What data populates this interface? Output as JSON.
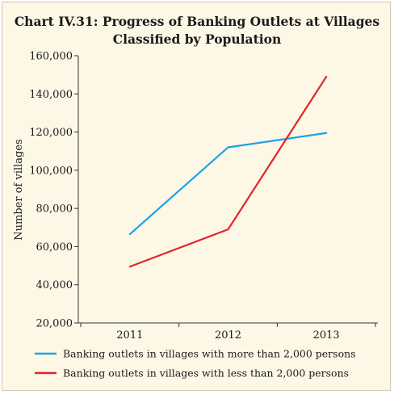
{
  "chart_data": {
    "type": "line",
    "title": "Chart IV.31: Progress of Banking Outlets at Villages Classified by Population",
    "title_line1": "Chart IV.31: Progress of Banking Outlets at Villages",
    "title_line2": "Classified by Population",
    "xlabel": "",
    "ylabel": "Number of villages",
    "categories": [
      "2011",
      "2012",
      "2013"
    ],
    "ylim": [
      20000,
      160000
    ],
    "yticks": [
      20000,
      40000,
      60000,
      80000,
      100000,
      120000,
      140000,
      160000
    ],
    "ytick_labels": [
      "20,000",
      "40,000",
      "60,000",
      "80,000",
      "100,000",
      "120,000",
      "140,000",
      "160,000"
    ],
    "grid": false,
    "legend_position": "bottom",
    "series": [
      {
        "name": "Banking outlets in villages with more than 2,000 persons",
        "values": [
          66500,
          112000,
          119500
        ],
        "color": "#1aa3e8"
      },
      {
        "name": "Banking outlets in villages with less than 2,000 persons",
        "values": [
          49500,
          69000,
          149000
        ],
        "color": "#e0262b"
      }
    ]
  }
}
